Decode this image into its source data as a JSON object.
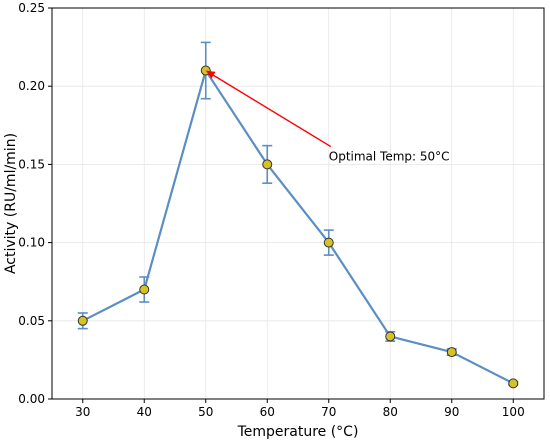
{
  "chart_data": {
    "type": "line",
    "title": "",
    "xlabel": "Temperature (°C)",
    "ylabel": "Activity (RU/ml/min)",
    "x": [
      30,
      40,
      50,
      60,
      70,
      80,
      90,
      100
    ],
    "series": [
      {
        "values": [
          0.05,
          0.07,
          0.21,
          0.15,
          0.1,
          0.04,
          0.03,
          0.01
        ],
        "errors": [
          0.005,
          0.008,
          0.018,
          0.012,
          0.008,
          0.003,
          0.002,
          0.001
        ],
        "line_color": "#5b8fc3",
        "marker_color": "#d4c227",
        "errorbar_color": "#5b8fc3"
      }
    ],
    "xticks": [
      "30",
      "40",
      "50",
      "60",
      "70",
      "80",
      "90",
      "100"
    ],
    "yticks": [
      "0.00",
      "0.05",
      "0.10",
      "0.15",
      "0.20",
      "0.25"
    ],
    "xlim": [
      25,
      105
    ],
    "ylim": [
      0,
      0.25
    ],
    "grid": true,
    "annotation": {
      "text": "Optimal Temp: 50°C",
      "target": {
        "x": 50,
        "y": 0.21
      },
      "text_anchor_data": {
        "x": 70,
        "y": 0.155
      },
      "arrow_color": "#ff0000"
    }
  }
}
